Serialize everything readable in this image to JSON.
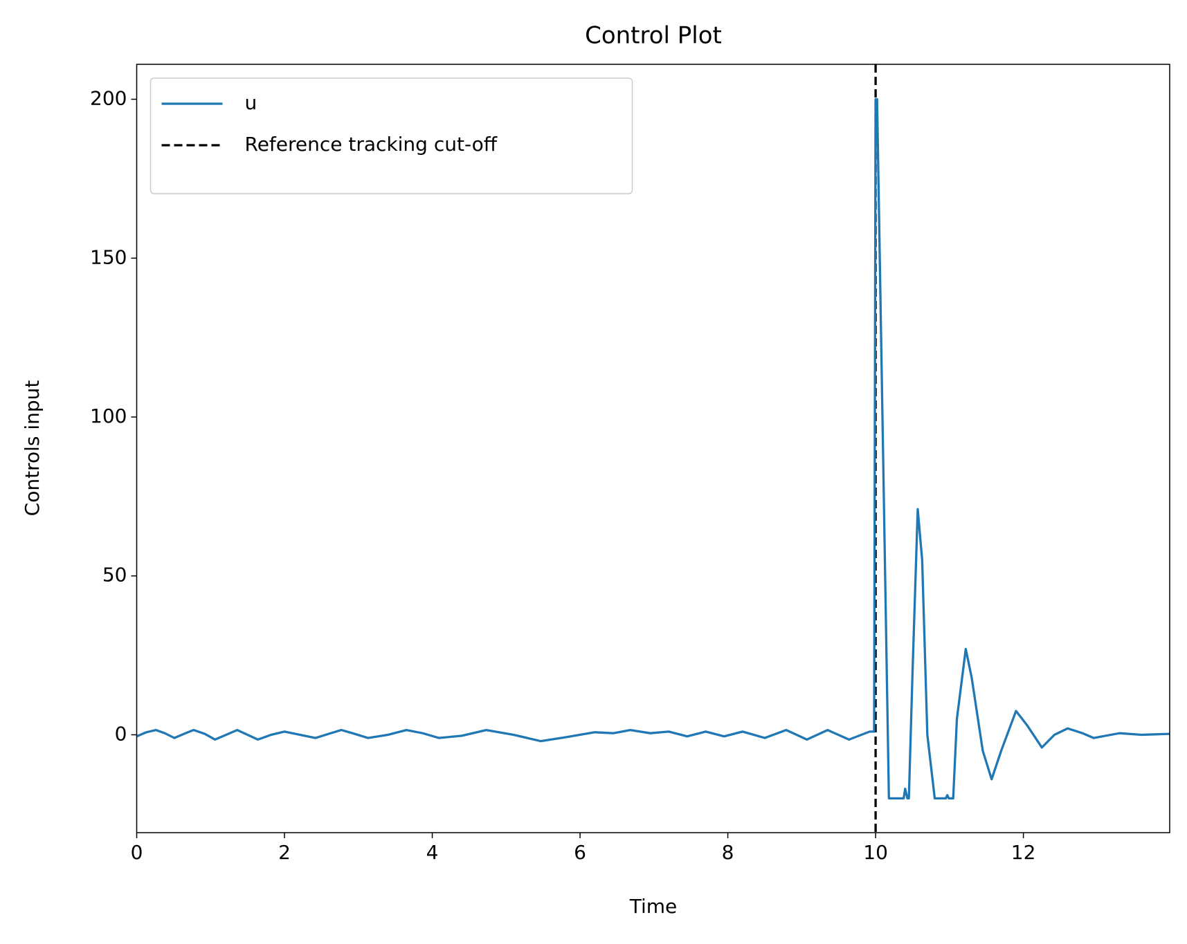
{
  "chart_data": {
    "type": "line",
    "title": "Control Plot",
    "x_label": "Time",
    "y_label": "Controls input",
    "x": [
      0,
      0.13,
      0.26,
      0.38,
      0.51,
      0.64,
      0.77,
      0.92,
      1.06,
      1.21,
      1.36,
      1.5,
      1.64,
      1.82,
      2.0,
      2.21,
      2.42,
      2.6,
      2.77,
      2.95,
      3.13,
      3.4,
      3.65,
      3.87,
      4.09,
      4.4,
      4.73,
      5.1,
      5.47,
      5.8,
      6.2,
      6.45,
      6.68,
      6.95,
      7.2,
      7.45,
      7.7,
      7.95,
      8.2,
      8.5,
      8.79,
      9.07,
      9.35,
      9.64,
      9.92,
      9.98,
      10.0,
      10.02,
      10.18,
      10.38,
      10.4,
      10.43,
      10.45,
      10.5,
      10.57,
      10.63,
      10.7,
      10.8,
      10.95,
      10.97,
      10.99,
      11.05,
      11.1,
      11.22,
      11.3,
      11.45,
      11.57,
      11.7,
      11.9,
      12.05,
      12.25,
      12.42,
      12.6,
      12.8,
      12.95,
      13.3,
      13.6,
      13.98
    ],
    "series": [
      {
        "name": "u",
        "color": "#1f77b4",
        "values": [
          -0.5,
          0.8,
          1.5,
          0.5,
          -1,
          0.3,
          1.5,
          0.3,
          -1.5,
          0,
          1.5,
          0,
          -1.5,
          0,
          1,
          0,
          -1,
          0.3,
          1.5,
          0.3,
          -1,
          0,
          1.5,
          0.5,
          -1,
          -0.3,
          1.5,
          0,
          -2,
          -0.8,
          0.8,
          0.5,
          1.5,
          0.5,
          1,
          -0.5,
          1,
          -0.5,
          1,
          -1,
          1.5,
          -1.5,
          1.5,
          -1.5,
          1,
          1,
          200,
          200,
          -20,
          -20,
          -17,
          -20,
          -20,
          20,
          71,
          55,
          0,
          -20,
          -20,
          -19,
          -20,
          -20,
          5,
          27,
          18,
          -5,
          -14,
          -5,
          7.5,
          3,
          -4,
          0,
          2,
          0.5,
          -1,
          0.5,
          0,
          0.3
        ]
      }
    ],
    "vlines": [
      {
        "name": "Reference tracking cut-off",
        "color": "#000000",
        "x": 10
      }
    ],
    "xlim": [
      0,
      13.98
    ],
    "ylim": [
      -30.8,
      211
    ],
    "xticks": [
      0,
      2,
      4,
      6,
      8,
      10,
      12
    ],
    "yticks": [
      0,
      50,
      100,
      150,
      200
    ],
    "grid": false,
    "legend": "upper left"
  }
}
